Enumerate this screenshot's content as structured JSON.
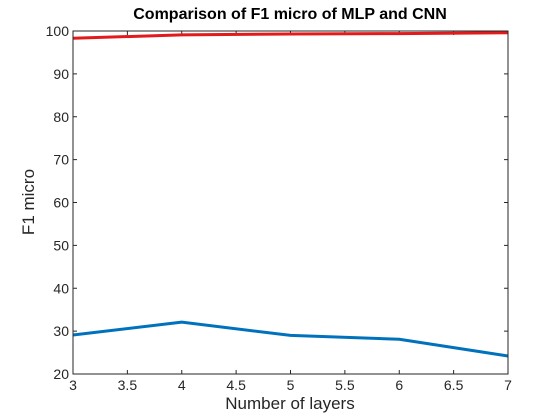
{
  "chart_data": {
    "type": "line",
    "title": "Comparison of F1 micro of MLP and CNN",
    "xlabel": "Number of layers",
    "ylabel": "F1 micro",
    "xlim": [
      3,
      7
    ],
    "ylim": [
      20,
      100
    ],
    "xticks": [
      "3",
      "3.5",
      "4",
      "4.5",
      "5",
      "5.5",
      "6",
      "6.5",
      "7"
    ],
    "yticks": [
      "20",
      "30",
      "40",
      "50",
      "60",
      "70",
      "80",
      "90",
      "100"
    ],
    "grid": false,
    "legend": false,
    "x": [
      3,
      4,
      5,
      6,
      7
    ],
    "series": [
      {
        "color": "#0072bd",
        "values": [
          29.1,
          32.1,
          29.0,
          28.1,
          24.2
        ]
      },
      {
        "color": "#e31a1c",
        "values": [
          98.3,
          99.1,
          99.3,
          99.4,
          99.6
        ]
      }
    ]
  }
}
